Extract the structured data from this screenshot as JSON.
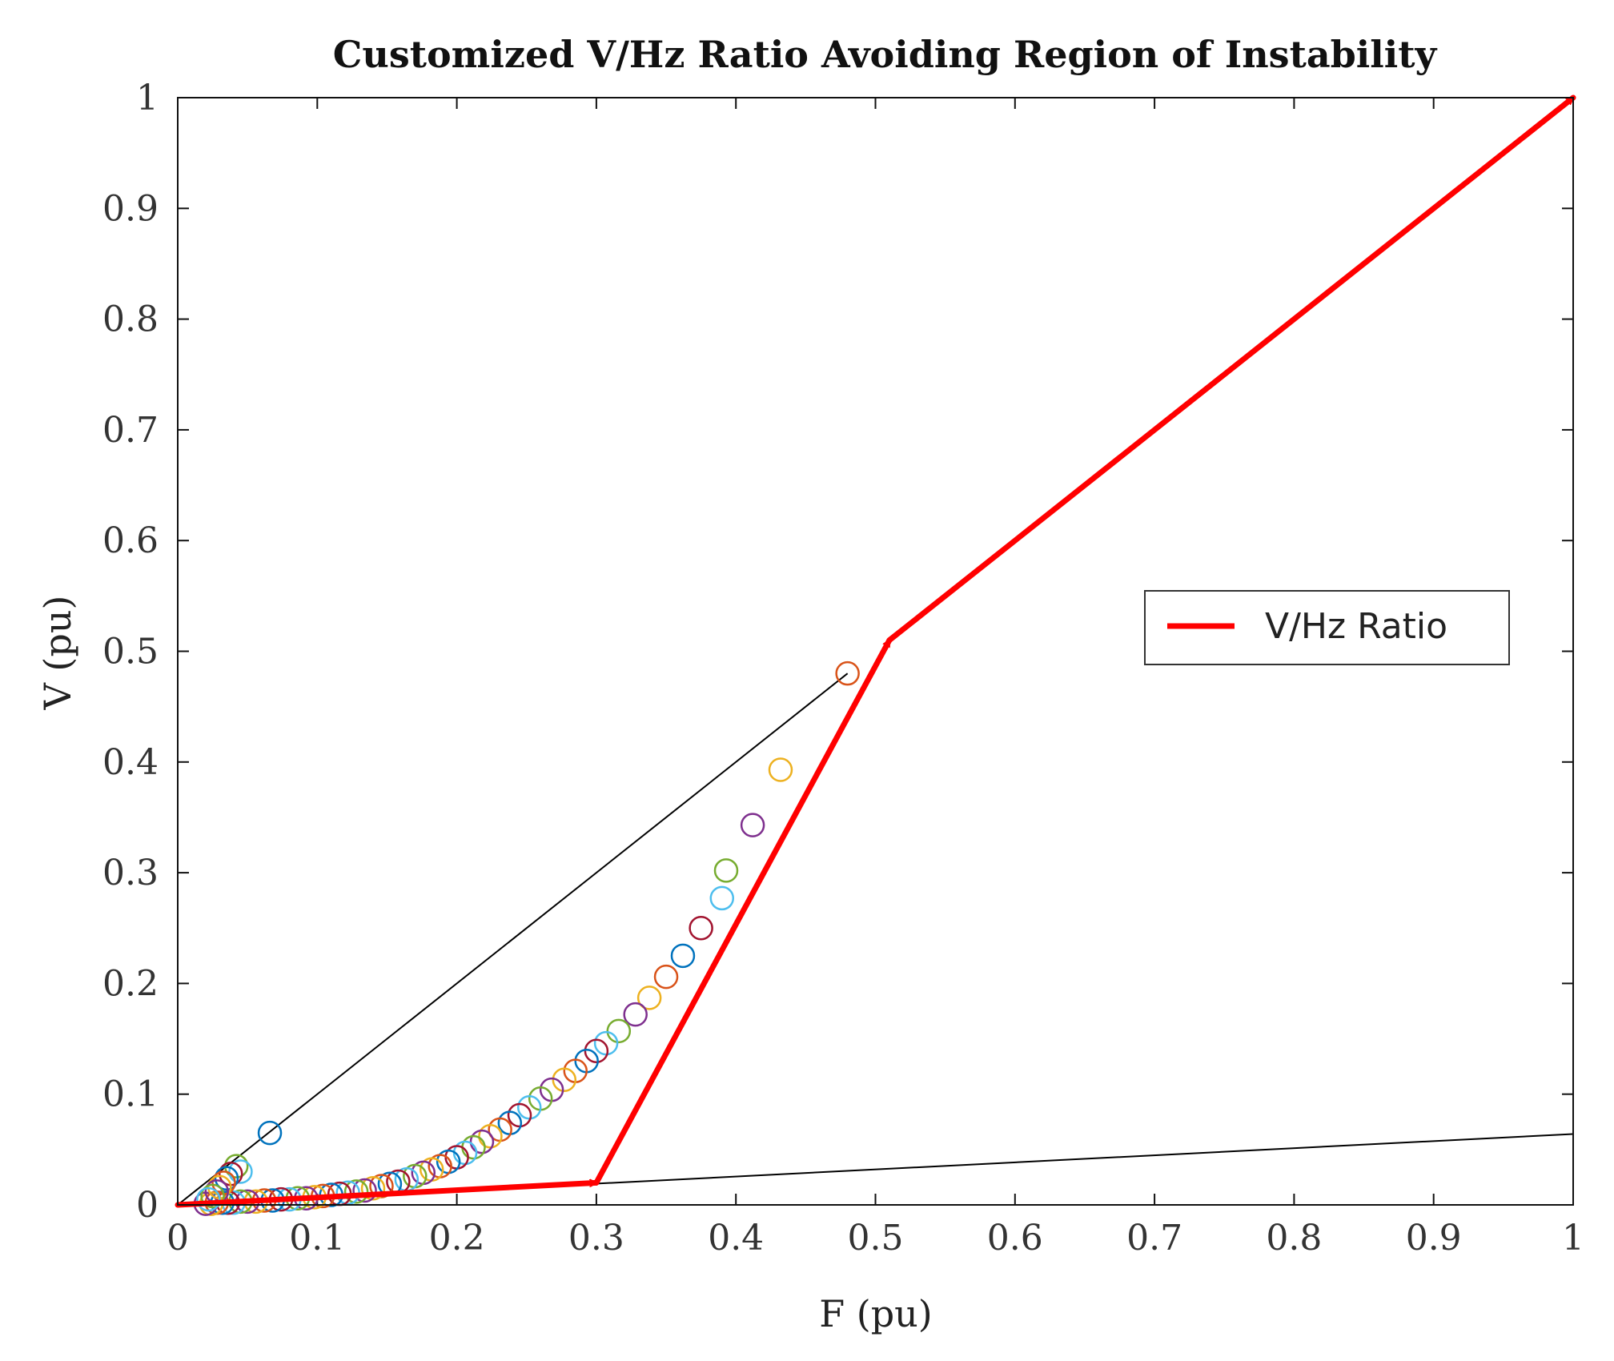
{
  "chart_data": {
    "type": "scatter",
    "title": "Customized V/Hz Ratio Avoiding Region of Instability",
    "xlabel": "F (pu)",
    "ylabel": "V (pu)",
    "xlim": [
      0,
      1
    ],
    "ylim": [
      0,
      1
    ],
    "xticks": [
      0,
      0.1,
      0.2,
      0.3,
      0.4,
      0.5,
      0.6,
      0.7,
      0.8,
      0.9,
      1
    ],
    "yticks": [
      0,
      0.1,
      0.2,
      0.3,
      0.4,
      0.5,
      0.6,
      0.7,
      0.8,
      0.9,
      1
    ],
    "xtick_labels": [
      "0",
      "0.1",
      "0.2",
      "0.3",
      "0.4",
      "0.5",
      "0.6",
      "0.7",
      "0.8",
      "0.9",
      "1"
    ],
    "ytick_labels": [
      "0",
      "0.1",
      "0.2",
      "0.3",
      "0.4",
      "0.5",
      "0.6",
      "0.7",
      "0.8",
      "0.9",
      "1"
    ],
    "grid": false,
    "legend": {
      "position": "right",
      "entries": [
        {
          "label": "V/Hz Ratio",
          "color": "#ff0000"
        }
      ]
    },
    "boundary_lines": {
      "color": "#000000",
      "series": [
        {
          "name": "upper boundary",
          "x": [
            0,
            0.48
          ],
          "y": [
            0,
            0.48
          ]
        },
        {
          "name": "lower boundary",
          "x": [
            0,
            1
          ],
          "y": [
            0,
            0.064
          ]
        }
      ]
    },
    "vhz_ratio": {
      "name": "V/Hz Ratio",
      "color": "#ff0000",
      "x": [
        0,
        0.3,
        0.51,
        1
      ],
      "y": [
        0,
        0.02,
        0.51,
        1
      ]
    },
    "marker_colors": [
      "#0072bd",
      "#d95319",
      "#edb120",
      "#7e2f8e",
      "#77ac30",
      "#4dbeee",
      "#a2142f"
    ],
    "scatter_points": {
      "x": [
        0.066,
        0.48,
        0.432,
        0.412,
        0.393,
        0.39,
        0.375,
        0.362,
        0.35,
        0.338,
        0.328,
        0.316,
        0.307,
        0.3,
        0.293,
        0.285,
        0.277,
        0.268,
        0.26,
        0.252,
        0.245,
        0.238,
        0.231,
        0.224,
        0.218,
        0.212,
        0.206,
        0.2,
        0.194,
        0.188,
        0.182,
        0.176,
        0.17,
        0.164,
        0.158,
        0.152,
        0.146,
        0.14,
        0.134,
        0.128,
        0.122,
        0.116,
        0.11,
        0.104,
        0.098,
        0.092,
        0.086,
        0.08,
        0.074,
        0.068,
        0.062,
        0.056,
        0.05,
        0.045,
        0.04,
        0.036,
        0.032,
        0.028,
        0.024,
        0.02,
        0.042,
        0.045,
        0.038,
        0.035,
        0.033,
        0.03,
        0.028,
        0.025,
        0.022
      ],
      "y": [
        0.065,
        0.48,
        0.393,
        0.343,
        0.302,
        0.277,
        0.25,
        0.225,
        0.206,
        0.187,
        0.172,
        0.157,
        0.146,
        0.139,
        0.13,
        0.121,
        0.113,
        0.104,
        0.096,
        0.088,
        0.081,
        0.074,
        0.068,
        0.062,
        0.057,
        0.052,
        0.047,
        0.043,
        0.039,
        0.035,
        0.032,
        0.029,
        0.026,
        0.023,
        0.021,
        0.019,
        0.017,
        0.015,
        0.013,
        0.012,
        0.011,
        0.01,
        0.009,
        0.008,
        0.007,
        0.006,
        0.006,
        0.005,
        0.005,
        0.004,
        0.004,
        0.003,
        0.003,
        0.003,
        0.002,
        0.002,
        0.002,
        0.002,
        0.001,
        0.001,
        0.035,
        0.03,
        0.028,
        0.024,
        0.02,
        0.016,
        0.012,
        0.008,
        0.005
      ]
    }
  }
}
